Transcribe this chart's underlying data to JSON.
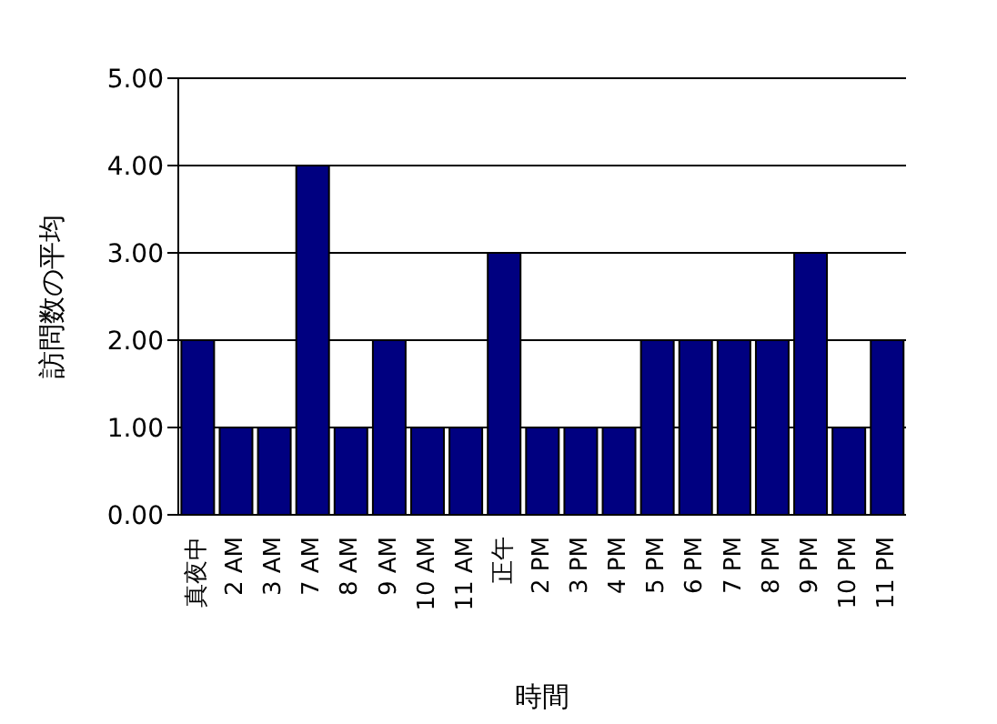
{
  "chart_data": {
    "type": "bar",
    "xlabel": "時間",
    "ylabel": "訪問数の平均",
    "categories": [
      "真夜中",
      "2 AM",
      "3 AM",
      "7 AM",
      "8 AM",
      "9 AM",
      "10 AM",
      "11 AM",
      "正午",
      "2 PM",
      "3 PM",
      "4 PM",
      "5 PM",
      "6 PM",
      "7 PM",
      "8 PM",
      "9 PM",
      "10 PM",
      "11 PM"
    ],
    "values": [
      2,
      1,
      1,
      4,
      1,
      2,
      1,
      1,
      3,
      1,
      1,
      1,
      2,
      2,
      2,
      2,
      3,
      1,
      2
    ],
    "color": "#000080",
    "ylim": [
      0,
      5
    ],
    "yticks": [
      {
        "value": 0,
        "label": "0.00"
      },
      {
        "value": 1,
        "label": "1.00"
      },
      {
        "value": 2,
        "label": "2.00"
      },
      {
        "value": 3,
        "label": "3.00"
      },
      {
        "value": 4,
        "label": "4.00"
      },
      {
        "value": 5,
        "label": "5.00"
      }
    ],
    "grid": "y"
  }
}
